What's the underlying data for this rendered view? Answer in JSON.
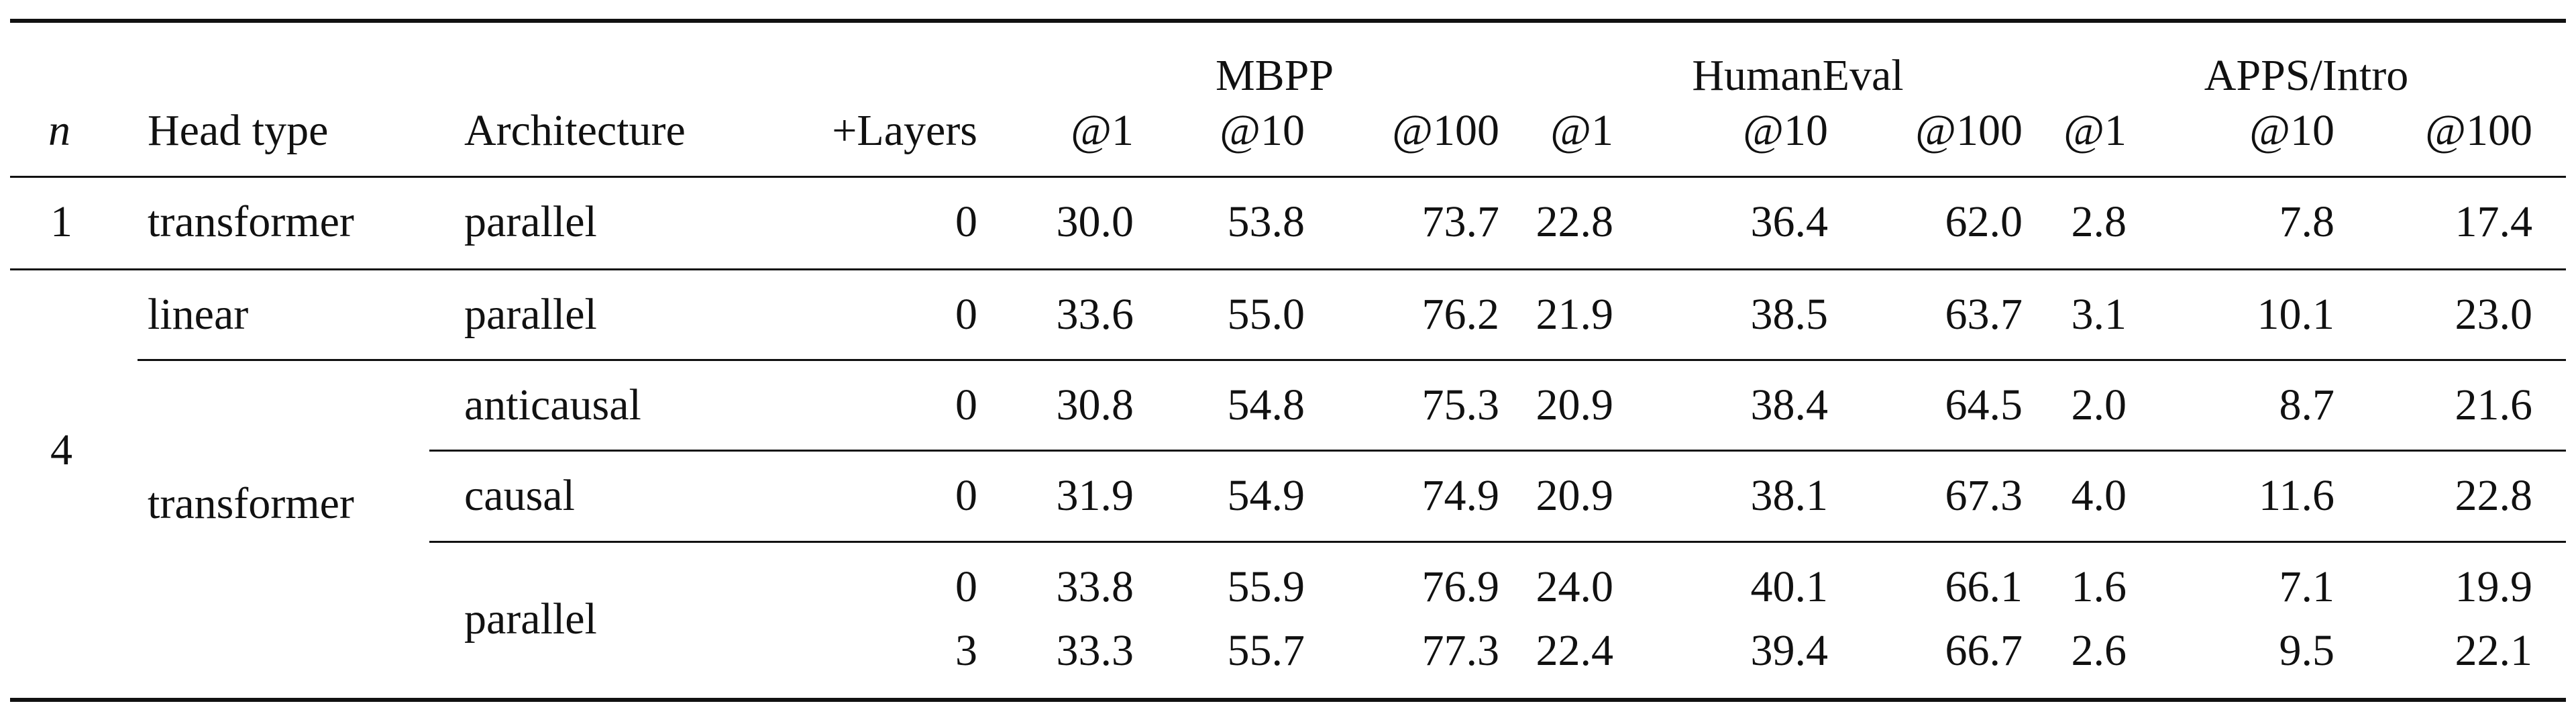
{
  "table": {
    "groups": [
      "MBPP",
      "HumanEval",
      "APPS/Intro"
    ],
    "headers": {
      "n": "n",
      "head_type": "Head type",
      "architecture": "Architecture",
      "layers": "+Layers",
      "metrics": [
        "@1",
        "@10",
        "@100",
        "@1",
        "@10",
        "@100",
        "@1",
        "@10",
        "@100"
      ]
    },
    "n_values": [
      "1",
      "4"
    ],
    "head_types": [
      "transformer",
      "linear",
      "transformer"
    ],
    "architectures": [
      "parallel",
      "parallel",
      "anticausal",
      "causal",
      "parallel"
    ],
    "rows": [
      {
        "layers": "0",
        "values": [
          "30.0",
          "53.8",
          "73.7",
          "22.8",
          "36.4",
          "62.0",
          "2.8",
          "7.8",
          "17.4"
        ]
      },
      {
        "layers": "0",
        "values": [
          "33.6",
          "55.0",
          "76.2",
          "21.9",
          "38.5",
          "63.7",
          "3.1",
          "10.1",
          "23.0"
        ]
      },
      {
        "layers": "0",
        "values": [
          "30.8",
          "54.8",
          "75.3",
          "20.9",
          "38.4",
          "64.5",
          "2.0",
          "8.7",
          "21.6"
        ]
      },
      {
        "layers": "0",
        "values": [
          "31.9",
          "54.9",
          "74.9",
          "20.9",
          "38.1",
          "67.3",
          "4.0",
          "11.6",
          "22.8"
        ]
      },
      {
        "layers": "0",
        "values": [
          "33.8",
          "55.9",
          "76.9",
          "24.0",
          "40.1",
          "66.1",
          "1.6",
          "7.1",
          "19.9"
        ]
      },
      {
        "layers": "3",
        "values": [
          "33.3",
          "55.7",
          "77.3",
          "22.4",
          "39.4",
          "66.7",
          "2.6",
          "9.5",
          "22.1"
        ]
      }
    ]
  }
}
